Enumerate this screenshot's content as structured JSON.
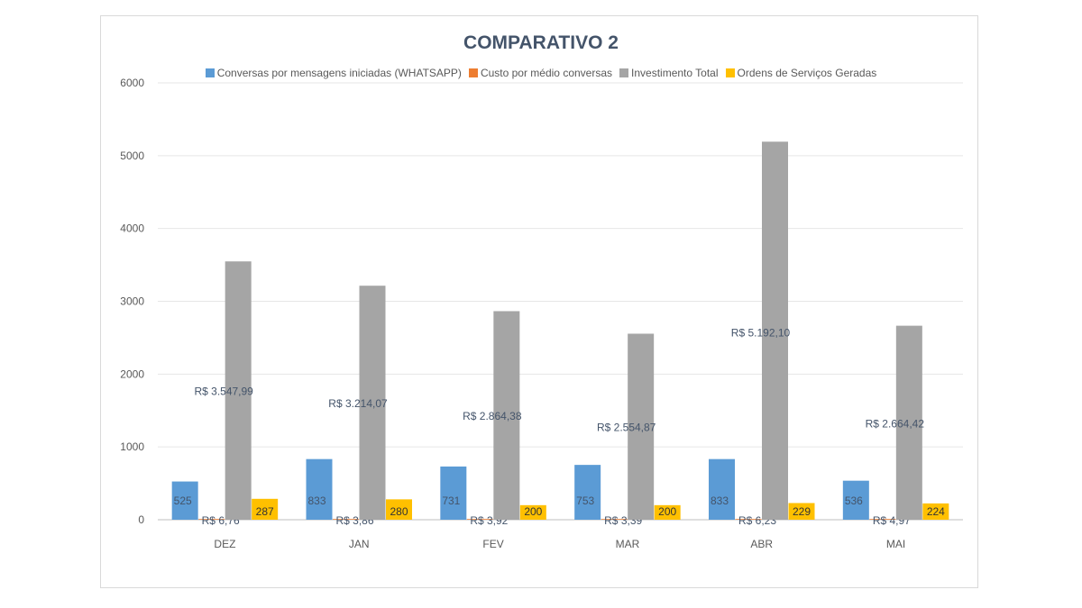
{
  "chart_data": {
    "type": "bar",
    "title": "COMPARATIVO 2",
    "xlabel": "",
    "ylabel": "",
    "ylim": [
      0,
      6000
    ],
    "yticks": [
      0,
      1000,
      2000,
      3000,
      4000,
      5000,
      6000
    ],
    "grid": true,
    "legend_position": "top",
    "categories": [
      "DEZ",
      "JAN",
      "FEV",
      "MAR",
      "ABR",
      "MAI"
    ],
    "series": [
      {
        "name": "Conversas por mensagens iniciadas (WHATSAPP)",
        "color": "#5b9bd5",
        "values": [
          525,
          833,
          731,
          753,
          833,
          536
        ],
        "labels": [
          "525",
          "833",
          "731",
          "753",
          "833",
          "536"
        ]
      },
      {
        "name": "Custo por médio conversas",
        "color": "#ed7d31",
        "values": [
          6.76,
          3.86,
          3.92,
          3.39,
          6.23,
          4.97
        ],
        "labels": [
          "R$ 6,76",
          "R$ 3,86",
          "R$ 3,92",
          "R$ 3,39",
          "R$ 6,23",
          "R$ 4,97"
        ]
      },
      {
        "name": "Investimento Total",
        "color": "#a5a5a5",
        "values": [
          3547.99,
          3214.07,
          2864.38,
          2554.87,
          5192.1,
          2664.42
        ],
        "labels": [
          "R$ 3.547,99",
          "R$ 3.214,07",
          "R$ 2.864,38",
          "R$ 2.554,87",
          "R$ 5.192,10",
          "R$ 2.664,42"
        ]
      },
      {
        "name": "Ordens de Serviços Geradas",
        "color": "#ffc000",
        "values": [
          287,
          280,
          200,
          200,
          229,
          224
        ],
        "labels": [
          "287",
          "280",
          "200",
          "200",
          "229",
          "224"
        ]
      }
    ]
  }
}
